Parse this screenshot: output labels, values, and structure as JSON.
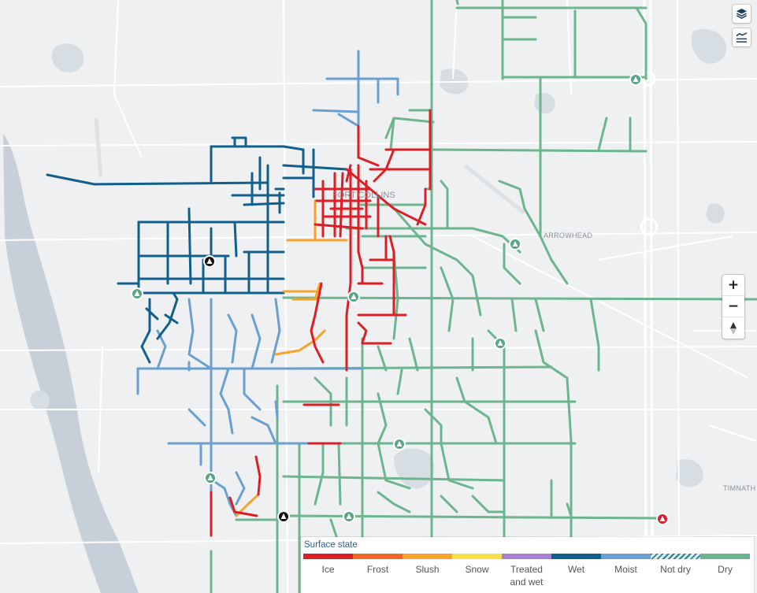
{
  "map": {
    "places": {
      "fort_collins": "FORT COLLINS",
      "arrowhead": "ARROWHEAD",
      "timnath": "TIMNATH"
    }
  },
  "controls": {
    "layers_icon": "layers-icon",
    "chart_icon": "chart-icon",
    "zoom_in": "+",
    "zoom_out": "−",
    "compass_icon": "compass-icon"
  },
  "legend": {
    "title": "Surface state",
    "items": [
      {
        "label": "Ice",
        "color": "#dc1f26"
      },
      {
        "label": "Frost",
        "color": "#f26722"
      },
      {
        "label": "Slush",
        "color": "#f7a22c"
      },
      {
        "label": "Snow",
        "color": "#f9e04b"
      },
      {
        "label": "Treated and wet",
        "color": "#a97fcf"
      },
      {
        "label": "Wet",
        "color": "#115f8c"
      },
      {
        "label": "Moist",
        "color": "#6a9fd0"
      },
      {
        "label": "Not dry",
        "color": "#2b7f92"
      },
      {
        "label": "Dry",
        "color": "#6db58f"
      }
    ]
  },
  "camera_markers": {
    "normal_color": "#5aa586",
    "alert_color": "#d4202f",
    "offline_color": "#111111"
  }
}
